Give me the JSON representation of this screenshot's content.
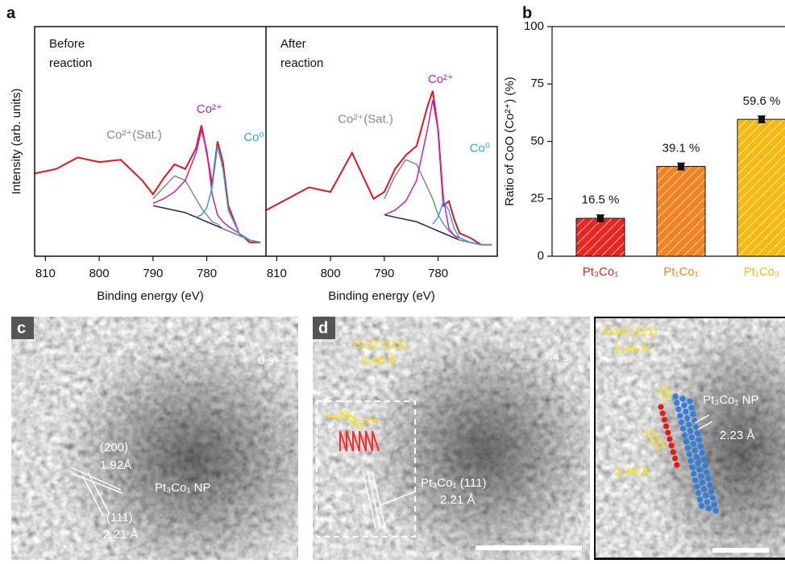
{
  "panel_letters": [
    "a",
    "b"
  ],
  "chart_data": [
    {
      "type": "line",
      "annotation": [
        "Before",
        "reaction"
      ],
      "y_label": "Intensity (arb. units)",
      "x_label": "Binding energy (eV)",
      "x": [
        812,
        808,
        804,
        800,
        796,
        792,
        790,
        788,
        786,
        784,
        782,
        781,
        780,
        779,
        778,
        777,
        776,
        774,
        772,
        770
      ],
      "xlim": [
        812,
        769
      ],
      "xticks": [
        810,
        800,
        790,
        780
      ],
      "ylim": [
        0,
        100
      ],
      "series": [
        {
          "color": "#e8141c",
          "values": [
            36,
            38,
            43,
            41,
            42,
            33,
            27,
            34,
            40,
            38,
            47,
            57,
            45,
            31,
            50,
            41,
            22,
            10,
            6,
            6
          ]
        },
        {
          "color": "#1c2a50",
          "values": [
            null,
            null,
            null,
            null,
            null,
            null,
            22,
            21,
            20,
            19,
            17,
            16,
            15,
            14,
            13,
            12,
            11,
            9,
            7,
            6
          ]
        },
        {
          "name": "Co²⁺(Sat.)",
          "color": "#888888",
          "values": [
            null,
            null,
            null,
            null,
            null,
            null,
            25,
            30,
            35,
            33,
            25,
            21,
            18,
            15,
            14,
            12,
            11,
            9,
            7,
            6
          ]
        },
        {
          "name": "Co²⁺",
          "color": "#c21fc6",
          "values": [
            null,
            null,
            null,
            null,
            null,
            null,
            23,
            25,
            28,
            33,
            45,
            55,
            46,
            27,
            18,
            15,
            13,
            10,
            7,
            6
          ]
        },
        {
          "name": "Co⁰",
          "color": "#2aa9d9",
          "values": [
            null,
            null,
            null,
            null,
            null,
            null,
            null,
            null,
            null,
            null,
            17,
            18,
            21,
            30,
            48,
            38,
            20,
            10,
            7,
            6
          ]
        }
      ]
    },
    {
      "type": "line",
      "annotation": [
        "After",
        "reaction"
      ],
      "x_label": "Binding energy (eV)",
      "x": [
        812,
        808,
        804,
        800,
        796,
        792,
        790,
        788,
        786,
        784,
        782,
        781,
        780,
        779,
        778,
        777,
        776,
        774,
        772,
        770
      ],
      "xlim": [
        812,
        769
      ],
      "xticks": [
        810,
        800,
        790,
        780
      ],
      "ylim": [
        0,
        100
      ],
      "series": [
        {
          "color": "#e8141c",
          "values": [
            20,
            25,
            30,
            28,
            45,
            25,
            28,
            38,
            44,
            48,
            65,
            72,
            55,
            22,
            24,
            16,
            10,
            8,
            5,
            5
          ]
        },
        {
          "color": "#1c2a50",
          "values": [
            null,
            null,
            null,
            null,
            null,
            null,
            18,
            17,
            16,
            15,
            13,
            12,
            11,
            10,
            9,
            8,
            7,
            6,
            5,
            5
          ]
        },
        {
          "name": "Co²⁺(Sat.)",
          "color": "#888888",
          "values": [
            null,
            null,
            null,
            null,
            null,
            null,
            25,
            35,
            42,
            40,
            30,
            25,
            18,
            14,
            11,
            9,
            7,
            6,
            5,
            5
          ]
        },
        {
          "name": "Co²⁺",
          "color": "#c21fc6",
          "values": [
            null,
            null,
            null,
            null,
            null,
            null,
            18,
            20,
            24,
            33,
            55,
            68,
            55,
            25,
            12,
            9,
            8,
            6,
            5,
            5
          ]
        },
        {
          "name": "Co⁰",
          "color": "#2aa9d9",
          "values": [
            null,
            null,
            null,
            null,
            null,
            null,
            null,
            null,
            null,
            null,
            null,
            14,
            17,
            24,
            20,
            12,
            8,
            6,
            5,
            5
          ]
        }
      ]
    },
    {
      "type": "bar",
      "y_label": "Ratio of CoO (Co²⁺) (%)",
      "categories": [
        "Pt₃Co₁",
        "Pt₁Co₁",
        "Pt₁Co₃"
      ],
      "values": [
        16.5,
        39.1,
        59.6
      ],
      "errors": [
        1.5,
        1.5,
        1.5
      ],
      "value_labels": [
        "16.5 %",
        "39.1 %",
        "59.6 %"
      ],
      "colors": [
        "#e8251f",
        "#f5821f",
        "#f6b90f"
      ],
      "ylim": [
        0,
        100
      ],
      "yticks": [
        0,
        25,
        50,
        75,
        100
      ]
    }
  ],
  "images": [
    {
      "letter": "c",
      "time": "0 s",
      "notes": [
        "(200)",
        "1.92Å",
        "Pt₃Co₁ NP",
        "(111)",
        "2.21 Å"
      ]
    },
    {
      "letter": "d",
      "time": "44 s",
      "notes": [
        "CoO (111)",
        "2.46 Å",
        "Pt₃Co₁ (111)",
        "2.21 Å"
      ]
    },
    {
      "notes": [
        "CoO (111)",
        "2.46 Å",
        "Pt₃Co₁ NP",
        "2.23 Å",
        "2.46 Å"
      ]
    }
  ]
}
